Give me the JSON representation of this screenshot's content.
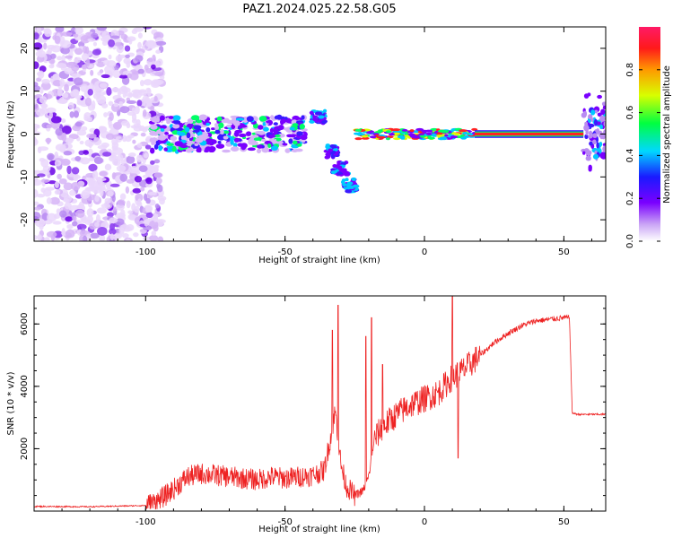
{
  "title": "PAZ1.2024.025.22.58.G05",
  "chart_data": [
    {
      "type": "heatmap",
      "xlabel": "Height of straight line (km)",
      "ylabel": "Frequency (Hz)",
      "xlim": [
        -140,
        65
      ],
      "ylim": [
        -25,
        25
      ],
      "xticks": [
        -100,
        -50,
        0,
        50
      ],
      "yticks": [
        -20,
        -10,
        0,
        10,
        20
      ],
      "colorbar": {
        "label": "Normalized spectral amplitude",
        "ticks": [
          0.0,
          0.2,
          0.4,
          0.6,
          0.8
        ],
        "range": [
          0,
          1
        ],
        "colormap": "white-violet-blue-cyan-green-yellow-orange-red-magenta"
      },
      "description_points": [
        {
          "x_range": [
            -140,
            -95
          ],
          "freq_spread": 25,
          "amplitude": "low",
          "note": "scattered noise"
        },
        {
          "x_range": [
            -98,
            -45
          ],
          "freq_center": 0,
          "freq_spread": 4,
          "amplitude": "medium"
        },
        {
          "x_range": [
            -45,
            -25
          ],
          "freq_center": 0,
          "freq_spread": 6,
          "amplitude": "medium",
          "branches": [
            [
              -38,
              5
            ],
            [
              -30,
              -8
            ],
            [
              -27,
              -13
            ]
          ]
        },
        {
          "x_range": [
            -25,
            18
          ],
          "freq_center": 0,
          "freq_spread": 1,
          "amplitude": "high"
        },
        {
          "x_range": [
            18,
            57
          ],
          "freq_center": 0,
          "freq_spread": 0.6,
          "amplitude": "max"
        },
        {
          "x_range": [
            58,
            65
          ],
          "freq_center": 0,
          "freq_spread": 11,
          "amplitude": "medium"
        }
      ]
    },
    {
      "type": "line",
      "xlabel": "Height of straight line (km)",
      "ylabel": "SNR (10 * v/v)",
      "xlim": [
        -140,
        65
      ],
      "ylim": [
        0,
        6900
      ],
      "xticks": [
        -100,
        -50,
        0,
        50
      ],
      "yticks": [
        2000,
        4000,
        6000
      ],
      "color": "#ee2222",
      "series": [
        {
          "x": [
            -140,
            -120,
            -100,
            -95,
            -90,
            -85,
            -80,
            -75,
            -70,
            -65,
            -60,
            -55,
            -50,
            -45,
            -40,
            -36,
            -34,
            -32,
            -31,
            -30,
            -28,
            -25,
            -22,
            -20,
            -19,
            -18,
            -15,
            -10,
            -5,
            0,
            5,
            8,
            10,
            12,
            15,
            20,
            25,
            30,
            35,
            40,
            45,
            50,
            52,
            53,
            55,
            60,
            65
          ],
          "y": [
            150,
            140,
            180,
            350,
            700,
            1100,
            1200,
            1150,
            1100,
            1050,
            1000,
            1100,
            1050,
            1100,
            1150,
            1300,
            2200,
            3200,
            2400,
            1500,
            800,
            500,
            650,
            1100,
            1700,
            2300,
            2700,
            3100,
            3400,
            3600,
            3800,
            4100,
            4300,
            4400,
            4600,
            5000,
            5400,
            5700,
            5950,
            6100,
            6150,
            6200,
            6200,
            3150,
            3100,
            3100,
            3100
          ]
        }
      ],
      "spikes": [
        {
          "x": -31,
          "y": 6600
        },
        {
          "x": -33,
          "y": 5800
        },
        {
          "x": -19,
          "y": 6200
        },
        {
          "x": -21,
          "y": 5600
        },
        {
          "x": -15,
          "y": 4700
        },
        {
          "x": 10,
          "y": 6900
        },
        {
          "x": 12,
          "y": 1700
        }
      ]
    }
  ]
}
